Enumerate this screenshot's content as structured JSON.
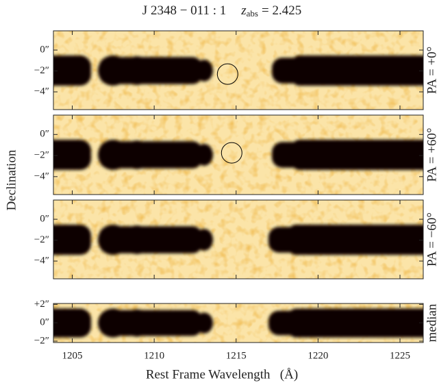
{
  "chart_data": {
    "type": "spectrum-image",
    "title": {
      "object": "J 2348 − 011 : 1",
      "z_symbol": "z",
      "z_subscript": "abs",
      "z_text": "= 2.425"
    },
    "xlabel": "Rest Frame Wavelength   (Å)",
    "ylabel": "Declination",
    "xlim": [
      1203.85,
      1226.42
    ],
    "xticks": [
      1205,
      1210,
      1215,
      1220,
      1225
    ],
    "panels": [
      {
        "label": "PA = +0°",
        "ylim": [
          -5.7,
          1.84
        ],
        "yticks": [
          {
            "value": 0,
            "label": "0″"
          },
          {
            "value": -2,
            "label": "−2″"
          },
          {
            "value": -4,
            "label": "−4″"
          }
        ],
        "markers": [
          {
            "x": 1214.48,
            "y": -2.3
          }
        ]
      },
      {
        "label": "PA = +60°",
        "ylim": [
          -5.7,
          1.84
        ],
        "yticks": [
          {
            "value": 0,
            "label": "0″"
          },
          {
            "value": -2,
            "label": "−2″"
          },
          {
            "value": -4,
            "label": "−4″"
          }
        ],
        "markers": [
          {
            "x": 1214.73,
            "y": -1.74
          }
        ]
      },
      {
        "label": "PA = −60°",
        "ylim": [
          -5.7,
          1.84
        ],
        "yticks": [
          {
            "value": 0,
            "label": "0″"
          },
          {
            "value": -2,
            "label": "−2″"
          },
          {
            "value": -4,
            "label": "−4″"
          }
        ],
        "markers": []
      },
      {
        "label": "median",
        "ylim": [
          -2.15,
          2.1
        ],
        "yticks": [
          {
            "value": 2,
            "label": "+2″"
          },
          {
            "value": 0,
            "label": "0″"
          },
          {
            "value": -2,
            "label": "−2″"
          }
        ],
        "markers": []
      }
    ]
  }
}
